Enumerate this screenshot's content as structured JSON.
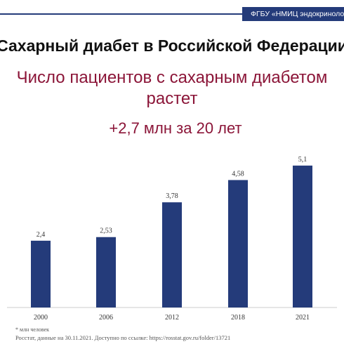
{
  "header": {
    "org_name": "ФГБУ «НМИЦ эндокринологии»",
    "accent": "#243b7a"
  },
  "title": "Сахарный диабет в Российской Федерации",
  "subtitle_line1": "Число пациентов с сахарным диабетом",
  "subtitle_line2": "растет",
  "chart_data": {
    "type": "bar",
    "title": "+2,7 млн за 20 лет",
    "categories": [
      "2000",
      "2006",
      "2012",
      "2018",
      "2021"
    ],
    "values": [
      2.4,
      2.53,
      3.78,
      4.58,
      5.1
    ],
    "value_labels": [
      "2,4",
      "2,53",
      "3,78",
      "4,58",
      "5,1"
    ],
    "ylim": [
      0,
      5.5
    ],
    "bar_color": "#243b7a",
    "grid": false,
    "xlabel": "",
    "ylabel": ""
  },
  "footnotes": {
    "unit": "* млн человек",
    "source": "Росстат, данные на 30.11.2021. Доступно по ссылке: https://rosstat.gov.ru/folder/13721"
  },
  "colors": {
    "title_text": "#111111",
    "subtitle_text": "#8b1538",
    "axis": "#cccccc"
  }
}
